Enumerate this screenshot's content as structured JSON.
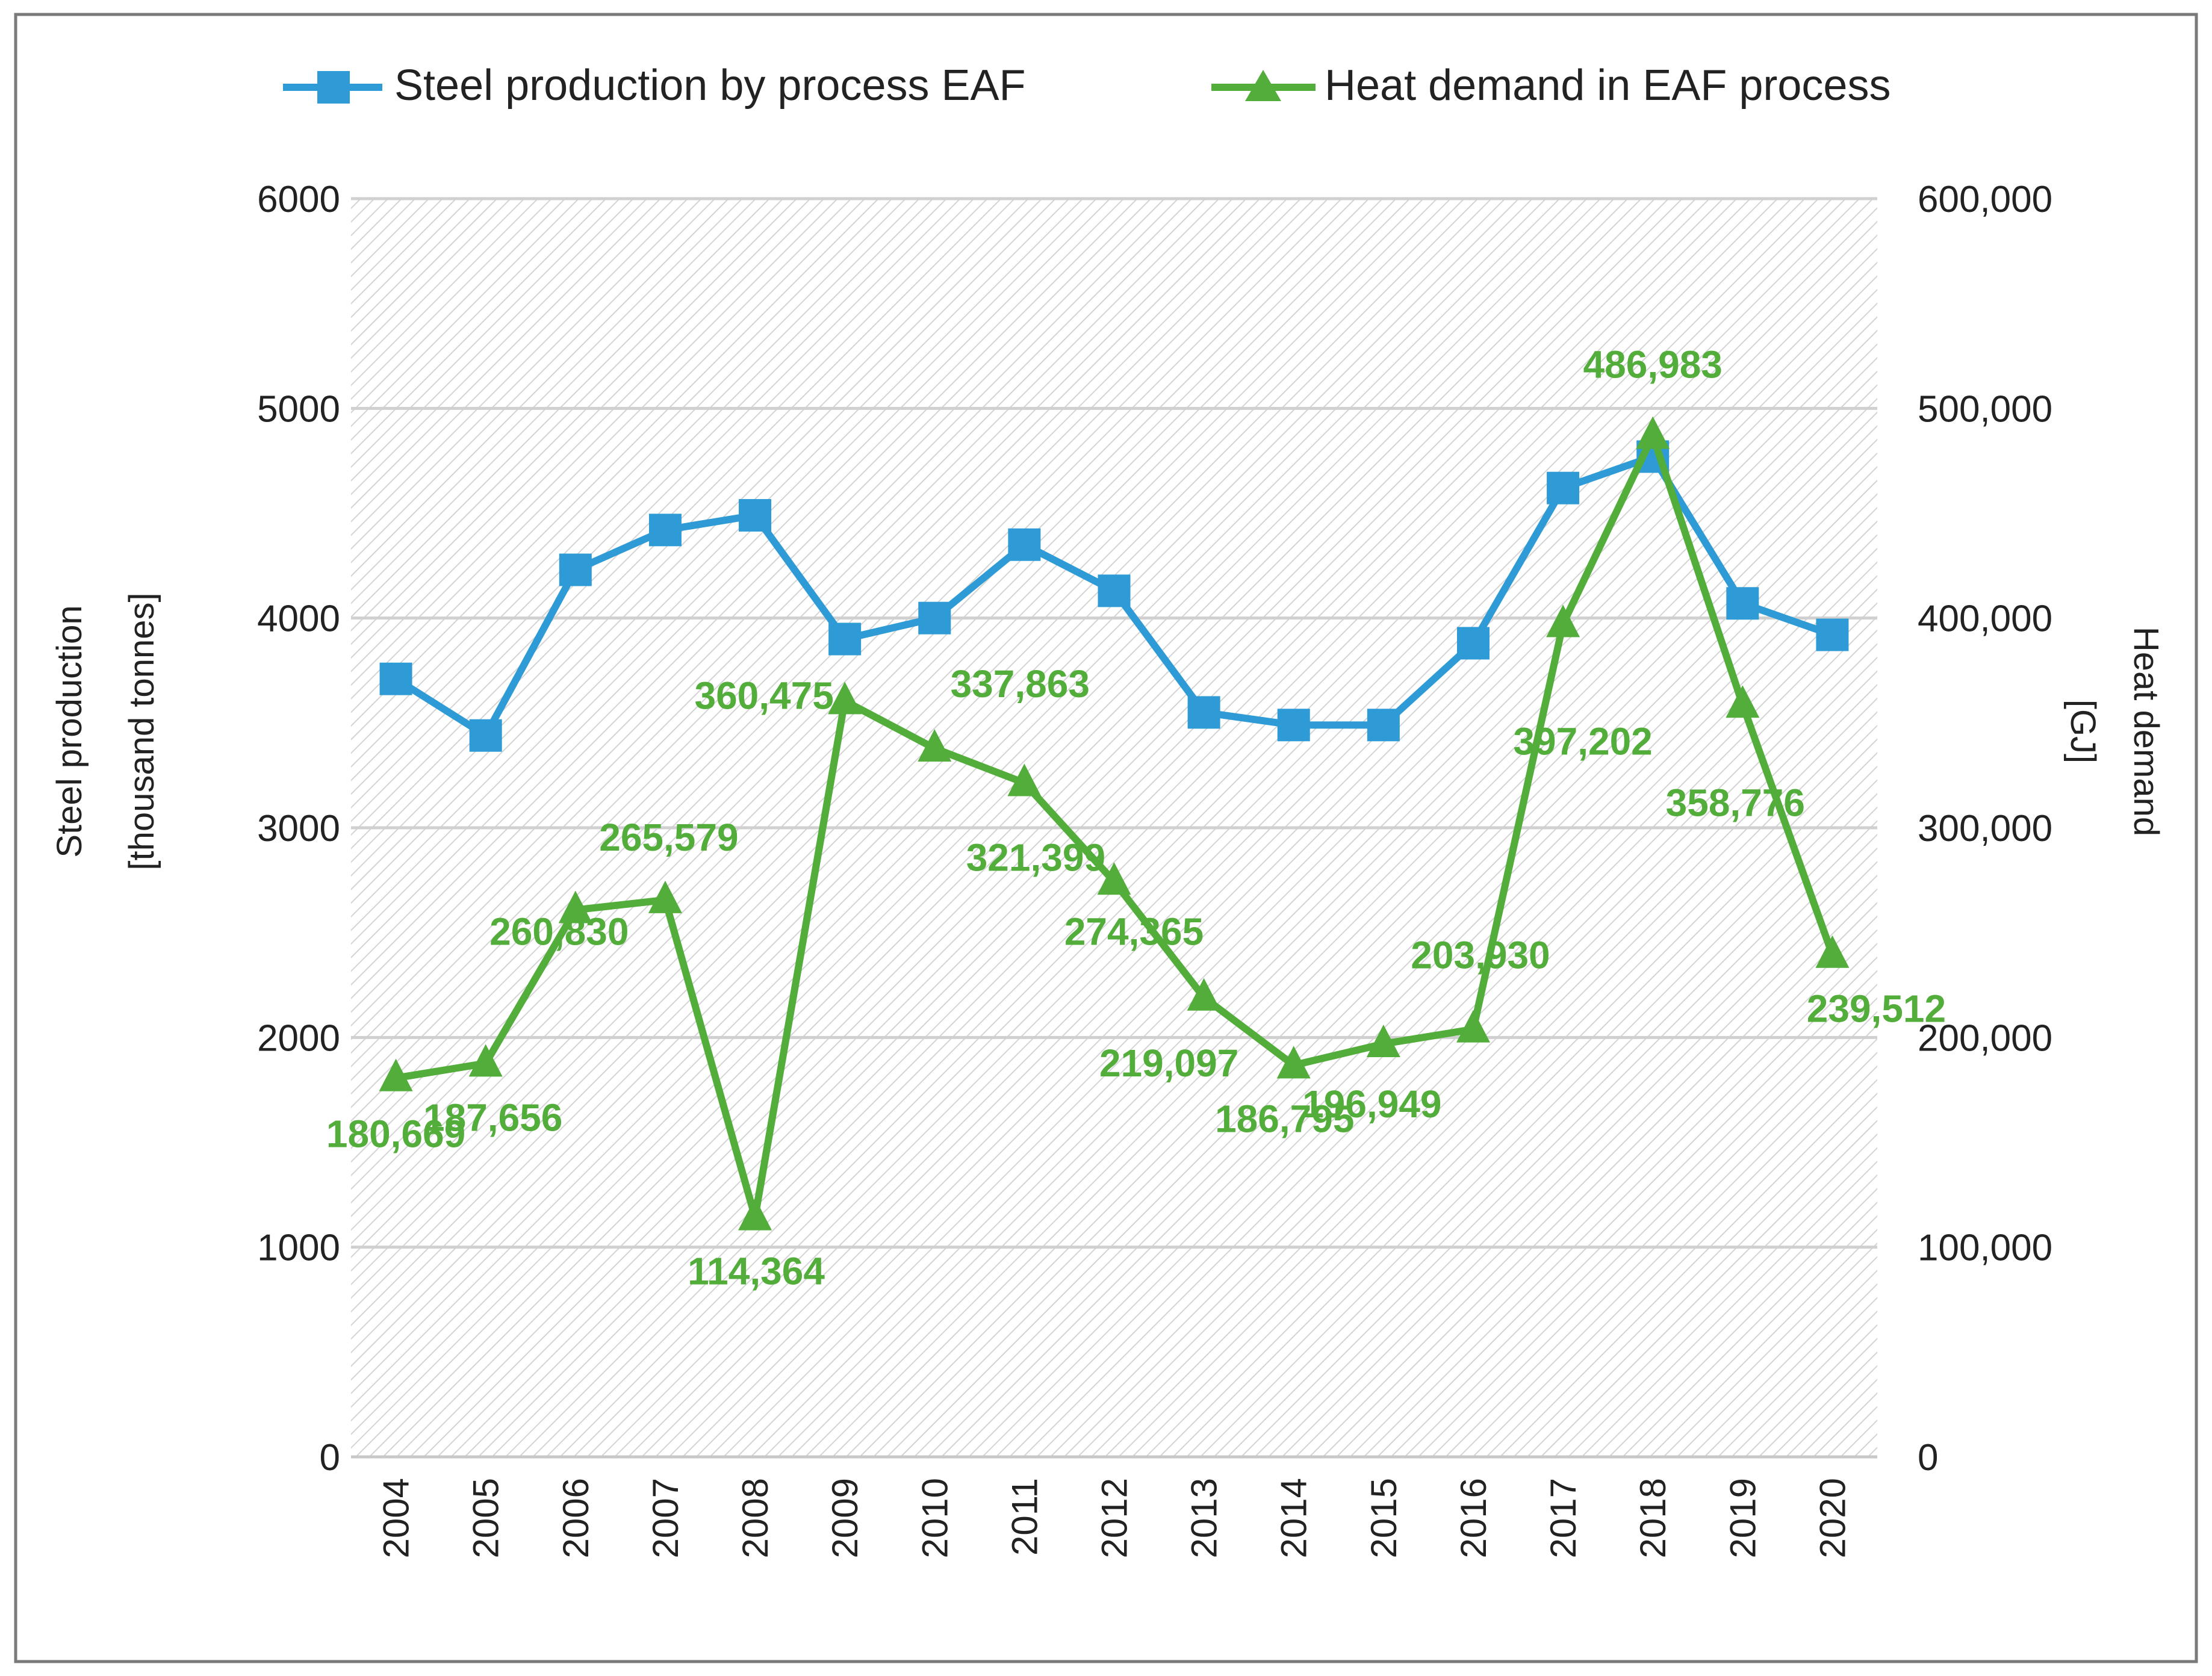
{
  "chart_data": {
    "type": "line",
    "title": "",
    "x": [
      "2004",
      "2005",
      "2006",
      "2007",
      "2008",
      "2009",
      "2010",
      "2011",
      "2012",
      "2013",
      "2014",
      "2015",
      "2016",
      "2017",
      "2018",
      "2019",
      "2020"
    ],
    "xlabel": "",
    "y_left": {
      "label_line1": "Steel production",
      "label_line2": "[thousand tonnes]",
      "range": [
        0,
        6000
      ],
      "ticks": [
        "0",
        "1000",
        "2000",
        "3000",
        "4000",
        "5000",
        "6000"
      ]
    },
    "y_right": {
      "label_line1": "Heat demand",
      "label_line2": "[GJ]",
      "range": [
        0,
        600000
      ],
      "ticks": [
        "0",
        "100,000",
        "200,000",
        "300,000",
        "400,000",
        "500,000",
        "600,000"
      ]
    },
    "grid": true,
    "legend_position": "top",
    "series": [
      {
        "name": "Steel production by process EAF",
        "axis": "left",
        "marker": "square",
        "color": "#2e9bd6",
        "values": [
          3710,
          3440,
          4230,
          4420,
          4490,
          3900,
          4000,
          4350,
          4130,
          3550,
          3490,
          3490,
          3880,
          4620,
          4770,
          4070,
          3920
        ]
      },
      {
        "name": "Heat demand in EAF process",
        "axis": "right",
        "marker": "triangle",
        "color": "#52ad3a",
        "values": [
          180669,
          187656,
          260830,
          265579,
          114364,
          360475,
          337863,
          321399,
          274365,
          219097,
          186795,
          196949,
          203930,
          397202,
          486983,
          358776,
          239512
        ],
        "data_labels": [
          "180,669",
          "187,656",
          "260,830",
          "265,579",
          "114,364",
          "360,475",
          "337,863",
          "321,399",
          "274,365",
          "219,097",
          "186,795",
          "196,949",
          "203,930",
          "397,202",
          "486,983",
          "358,776",
          "239,512"
        ]
      }
    ]
  }
}
